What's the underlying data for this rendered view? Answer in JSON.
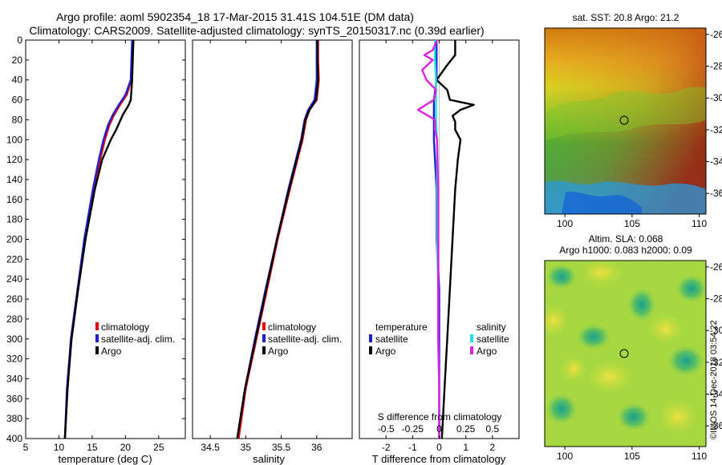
{
  "titles": {
    "line1": "Argo profile: aoml 5902354_18 17-Mar-2015 31.41S 104.51E (DM data)",
    "line2": "Climatology: CARS2009. Satellite-adjusted climatology: synTS_20150317.nc (0.39d earlier)"
  },
  "credit": "©IMOS 14-Dec-2018 03:54:22",
  "colors": {
    "climatology": "#e8000b",
    "satellite": "#1f1fd0",
    "argo": "#000000",
    "salinity_satellite": "#20e0f0",
    "salinity_argo": "#e020e0"
  },
  "chart_data": [
    {
      "type": "line",
      "title": "",
      "xlabel": "temperature (deg C)",
      "ylabel": "",
      "xlim": [
        5,
        29
      ],
      "ylim": [
        0,
        400
      ],
      "x_ticks": [
        "5",
        "10",
        "15",
        "20",
        "25"
      ],
      "x_tick_values": [
        5,
        10,
        15,
        20,
        25
      ],
      "y_ticks": [
        "0",
        "20",
        "40",
        "60",
        "80",
        "100",
        "120",
        "140",
        "160",
        "180",
        "200",
        "220",
        "240",
        "260",
        "280",
        "300",
        "320",
        "340",
        "360",
        "380",
        "400"
      ],
      "legend": [
        "climatology",
        "satellite-adj. clim.",
        "Argo"
      ],
      "series": [
        {
          "name": "climatology",
          "color": "#e8000b",
          "depth": [
            0,
            20,
            40,
            55,
            65,
            75,
            85,
            100,
            120,
            150,
            200,
            250,
            300,
            350,
            400
          ],
          "values": [
            21.1,
            21.0,
            20.9,
            20.2,
            19.2,
            18.3,
            17.6,
            16.9,
            16.2,
            15.2,
            13.9,
            12.8,
            11.8,
            11.3,
            10.9
          ]
        },
        {
          "name": "satellite-adj. clim.",
          "color": "#1f1fd0",
          "depth": [
            0,
            20,
            40,
            55,
            65,
            75,
            85,
            100,
            120,
            150,
            200,
            250,
            300,
            350,
            400
          ],
          "values": [
            21.0,
            20.9,
            20.8,
            20.0,
            19.0,
            18.1,
            17.4,
            16.7,
            16.0,
            15.1,
            13.8,
            12.8,
            11.8,
            11.2,
            10.9
          ]
        },
        {
          "name": "Argo",
          "color": "#000000",
          "depth": [
            0,
            20,
            40,
            60,
            65,
            75,
            90,
            100,
            120,
            150,
            200,
            250,
            300,
            350,
            400
          ],
          "values": [
            21.2,
            21.1,
            21.0,
            20.8,
            20.5,
            19.6,
            18.6,
            17.8,
            16.5,
            15.4,
            14.0,
            12.9,
            11.9,
            11.3,
            10.9
          ]
        }
      ]
    },
    {
      "type": "line",
      "title": "",
      "xlabel": "salinity",
      "ylabel": "",
      "xlim": [
        34.25,
        36.5
      ],
      "ylim": [
        0,
        400
      ],
      "x_ticks": [
        "34.5",
        "35",
        "35.5",
        "36"
      ],
      "x_tick_values": [
        34.5,
        35,
        35.5,
        36
      ],
      "legend": [
        "climatology",
        "satellite-adj. clim.",
        "Argo"
      ],
      "series": [
        {
          "name": "climatology",
          "color": "#e8000b",
          "depth": [
            0,
            20,
            40,
            60,
            70,
            80,
            100,
            150,
            200,
            250,
            300,
            350,
            400
          ],
          "values": [
            36.02,
            36.02,
            36.03,
            36.0,
            35.9,
            35.85,
            35.8,
            35.62,
            35.45,
            35.3,
            35.15,
            35.0,
            34.9
          ]
        },
        {
          "name": "satellite-adj. clim.",
          "color": "#1f1fd0",
          "depth": [
            0,
            20,
            40,
            60,
            70,
            80,
            100,
            150,
            200,
            250,
            300,
            350,
            400
          ],
          "values": [
            36.0,
            36.0,
            36.0,
            35.97,
            35.88,
            35.83,
            35.78,
            35.6,
            35.44,
            35.28,
            35.13,
            34.99,
            34.88
          ]
        },
        {
          "name": "Argo",
          "color": "#000000",
          "depth": [
            0,
            20,
            40,
            60,
            70,
            80,
            100,
            150,
            200,
            250,
            300,
            350,
            400
          ],
          "values": [
            36.01,
            36.01,
            36.02,
            35.99,
            35.9,
            35.84,
            35.79,
            35.61,
            35.44,
            35.29,
            35.14,
            34.99,
            34.88
          ]
        }
      ]
    },
    {
      "type": "line",
      "title": "",
      "xlabel": "T difference from climatology",
      "xlabel_top": "S difference from climatology",
      "ylabel": "",
      "xlim": [
        -3,
        3
      ],
      "ylim": [
        0,
        400
      ],
      "x_ticks": [
        "-2",
        "-1",
        "0",
        "1",
        "2"
      ],
      "x_tick_values": [
        -2,
        -1,
        0,
        1,
        2
      ],
      "x2_ticks": [
        "-0.5",
        "-0.25",
        "0",
        "0.25",
        "0.5"
      ],
      "legend": {
        "temperature_header": "temperature",
        "salinity_header": "salinity",
        "entries": [
          "satellite",
          "Argo",
          "satellite",
          "Argo"
        ]
      },
      "series": [
        {
          "name": "T satellite",
          "color": "#1f1fd0",
          "depth": [
            0,
            20,
            40,
            60,
            70,
            80,
            100,
            150,
            200,
            250,
            300,
            350,
            400
          ],
          "values": [
            -0.1,
            -0.1,
            -0.1,
            -0.2,
            -0.2,
            -0.2,
            -0.2,
            -0.1,
            -0.1,
            0.0,
            0.0,
            0.0,
            0.0
          ]
        },
        {
          "name": "T Argo",
          "color": "#000000",
          "depth": [
            0,
            15,
            25,
            40,
            50,
            60,
            65,
            70,
            76,
            82,
            90,
            100,
            120,
            150,
            200,
            250,
            300,
            350,
            400
          ],
          "values": [
            0.6,
            0.6,
            0.3,
            -0.1,
            0.3,
            0.4,
            1.3,
            0.8,
            0.5,
            0.6,
            0.6,
            0.8,
            0.7,
            0.6,
            0.5,
            0.4,
            0.3,
            0.2,
            0.1
          ]
        },
        {
          "name": "S satellite",
          "color": "#20e0f0",
          "depth": [
            0,
            20,
            40,
            60,
            80,
            100,
            150,
            200,
            250,
            300,
            350,
            400
          ],
          "values": [
            -0.04,
            -0.04,
            -0.03,
            -0.03,
            -0.03,
            -0.02,
            -0.02,
            -0.02,
            -0.01,
            -0.01,
            0.0,
            0.0
          ]
        },
        {
          "name": "S Argo",
          "color": "#e020e0",
          "depth": [
            0,
            10,
            15,
            20,
            30,
            40,
            50,
            60,
            70,
            80,
            90,
            100,
            150,
            200,
            250,
            300,
            350,
            400
          ],
          "values": [
            -0.02,
            -0.06,
            -0.14,
            -0.06,
            -0.16,
            -0.12,
            -0.03,
            -0.05,
            -0.2,
            -0.04,
            -0.04,
            -0.02,
            -0.01,
            -0.01,
            -0.01,
            -0.01,
            0.0,
            0.0
          ]
        }
      ]
    },
    {
      "type": "heatmap",
      "title": "sat. SST: 20.8 Argo: 21.2",
      "xlabel": "",
      "ylabel": "",
      "xlim": [
        98.5,
        110.5
      ],
      "ylim": [
        -37.3,
        -25.6
      ],
      "x_ticks": [
        "100",
        "105",
        "110"
      ],
      "x_tick_values": [
        100,
        105,
        110
      ],
      "y_ticks": [
        "-26",
        "-28",
        "-30",
        "-32",
        "-34",
        "-36"
      ],
      "y_tick_values": [
        -26,
        -28,
        -30,
        -32,
        -34,
        -36
      ],
      "marker": {
        "lon": 104.51,
        "lat": -31.41
      }
    },
    {
      "type": "heatmap",
      "title": "Altim. SLA: 0.068",
      "subtitle": "Argo h1000: 0.083 h2000: 0.09",
      "xlabel": "",
      "ylabel": "",
      "xlim": [
        98.5,
        110.5
      ],
      "ylim": [
        -37.3,
        -25.6
      ],
      "x_ticks": [
        "100",
        "105",
        "110"
      ],
      "x_tick_values": [
        100,
        105,
        110
      ],
      "y_ticks": [
        "-26",
        "-28",
        "-30",
        "-32",
        "-34",
        "-36"
      ],
      "y_tick_values": [
        -26,
        -28,
        -30,
        -32,
        -34,
        -36
      ],
      "marker": {
        "lon": 104.51,
        "lat": -31.41
      }
    }
  ]
}
